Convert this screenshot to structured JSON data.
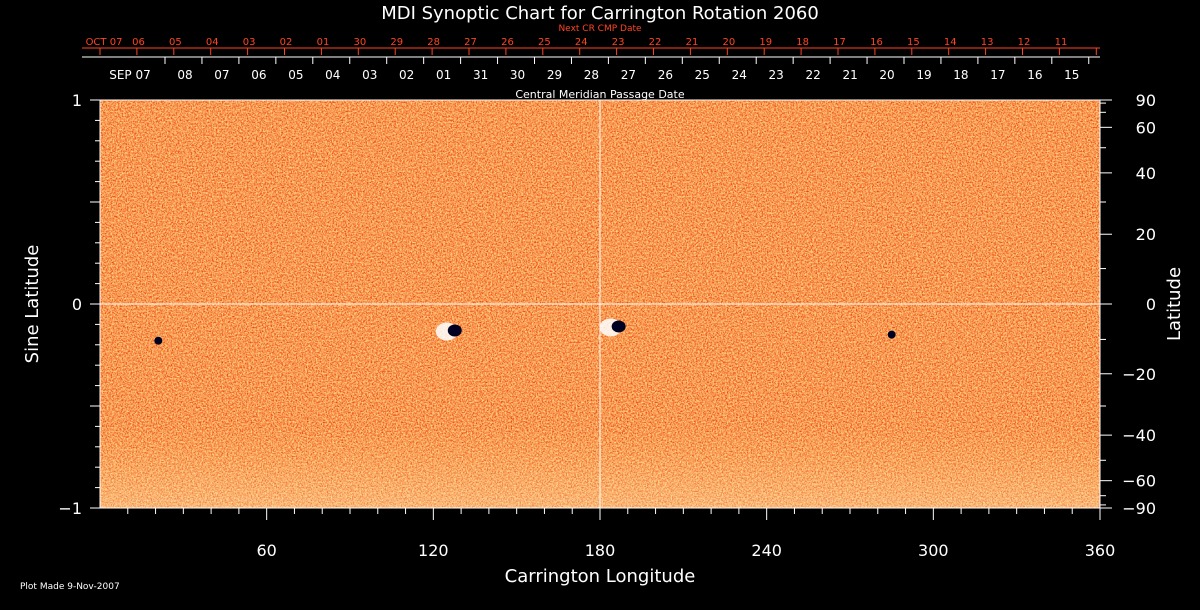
{
  "chart_data": {
    "type": "heatmap",
    "title": "MDI Synoptic Chart for Carrington Rotation 2060",
    "xlabel": "Carrington Longitude",
    "ylabel_left": "Sine Latitude",
    "ylabel_right": "Latitude",
    "xlim": [
      0,
      360
    ],
    "ylim": [
      -1,
      1
    ],
    "x_ticks": [
      60,
      120,
      180,
      240,
      300,
      360
    ],
    "y_ticks_left": [
      {
        "value": 1,
        "label": "1"
      },
      {
        "value": 0,
        "label": "0"
      },
      {
        "value": -1,
        "label": "−1"
      }
    ],
    "y_ticks_right": [
      90,
      60,
      40,
      20,
      0,
      -20,
      -40,
      -60,
      -90
    ],
    "top_axis_label": "Central Meridian Passage Date",
    "top_axis_dates": [
      "SEP 07",
      "08",
      "07",
      "06",
      "05",
      "04",
      "03",
      "02",
      "01",
      "31",
      "30",
      "29",
      "28",
      "27",
      "26",
      "25",
      "24",
      "23",
      "22",
      "21",
      "20",
      "19",
      "18",
      "17",
      "16",
      "15"
    ],
    "next_cr_label": "Next CR CMP Date",
    "next_cr_dates": [
      "OCT 07",
      "06",
      "05",
      "04",
      "03",
      "02",
      "01",
      "30",
      "29",
      "28",
      "27",
      "26",
      "25",
      "24",
      "23",
      "22",
      "21",
      "20",
      "19",
      "18",
      "17",
      "16",
      "15",
      "14",
      "13",
      "12",
      "11"
    ],
    "features": [
      {
        "name": "bipolar-region",
        "lon": 127,
        "sinlat": -0.13
      },
      {
        "name": "bipolar-region",
        "lon": 186,
        "sinlat": -0.11
      },
      {
        "name": "small-spot",
        "lon": 21,
        "sinlat": -0.18
      },
      {
        "name": "small-spot",
        "lon": 285,
        "sinlat": -0.15
      }
    ],
    "colors": {
      "background": "#000000",
      "positive": "#ffffff",
      "negative": "#000044",
      "neutral": "#ee4400",
      "grid": "#ffffff",
      "next_cr": "#ff4422"
    }
  },
  "footer": {
    "plot_made": "Plot Made  9-Nov-2007"
  }
}
